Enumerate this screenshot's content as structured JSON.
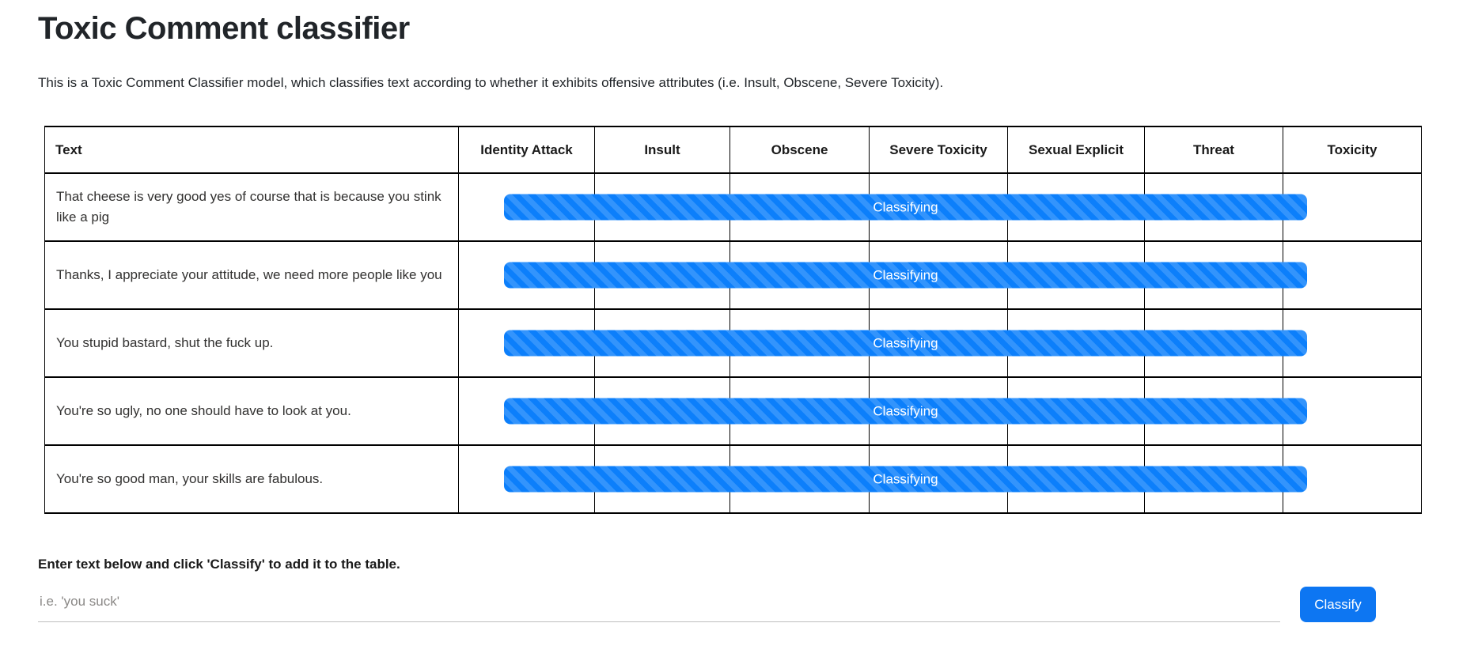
{
  "page": {
    "title": "Toxic Comment classifier",
    "description": "This is a Toxic Comment Classifier model, which classifies text according to whether it exhibits offensive attributes (i.e. Insult, Obscene, Severe Toxicity)."
  },
  "table": {
    "columns": [
      "Text",
      "Identity Attack",
      "Insult",
      "Obscene",
      "Severe Toxicity",
      "Sexual Explicit",
      "Threat",
      "Toxicity"
    ],
    "rows": [
      {
        "text": "That cheese is very good yes of course that is because you stink like a pig",
        "status": "Classifying"
      },
      {
        "text": "Thanks, I appreciate your attitude, we need more people like you",
        "status": "Classifying"
      },
      {
        "text": "You stupid bastard, shut the fuck up.",
        "status": "Classifying"
      },
      {
        "text": "You're so ugly, no one should have to look at you.",
        "status": "Classifying"
      },
      {
        "text": "You're so good man, your skills are fabulous.",
        "status": "Classifying"
      }
    ]
  },
  "form": {
    "instruction": "Enter text below and click 'Classify' to add it to the table.",
    "input_value": "",
    "input_placeholder": "i.e. 'you suck'",
    "button_label": "Classify"
  },
  "colors": {
    "progress_bar": "#0c7ffb",
    "button": "#0d76f2",
    "table_border": "#000000",
    "body_text": "#212529",
    "placeholder": "#8a8886",
    "input_underline": "#bdbdbd"
  }
}
